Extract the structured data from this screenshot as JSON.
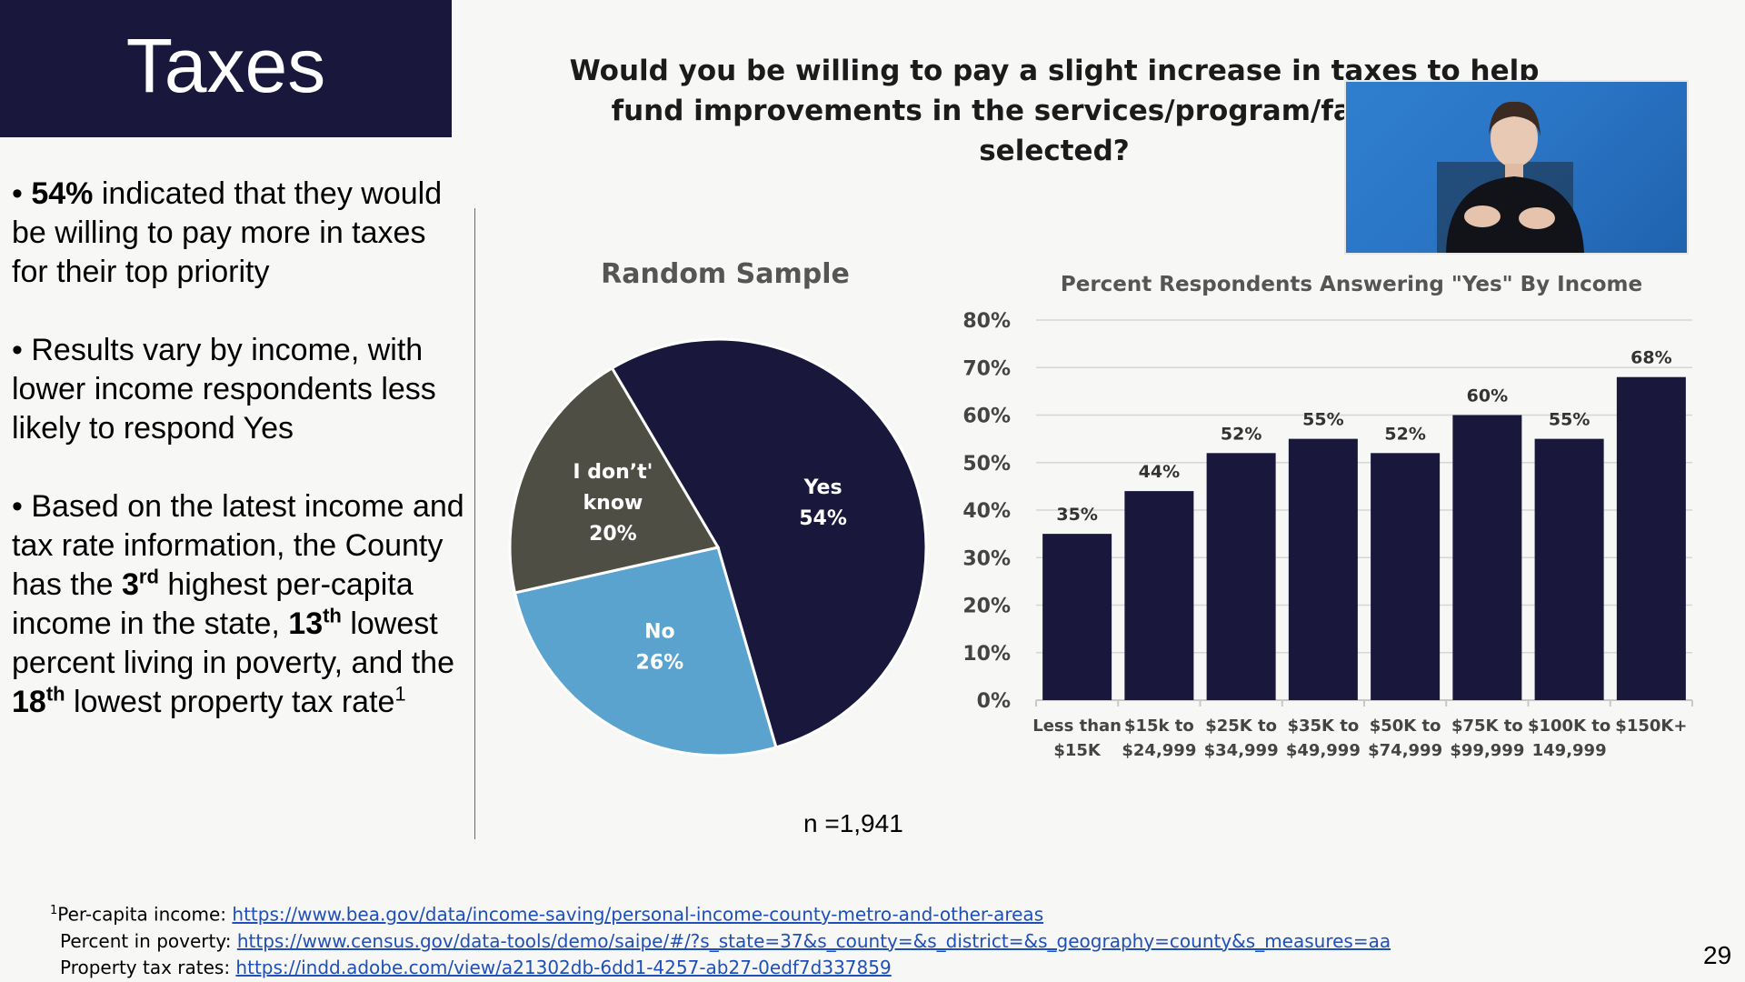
{
  "slide": {
    "title": "Taxes",
    "question": "Would you be willing to pay a slight increase in taxes to help fund improvements in the services/program/facility you selected?",
    "page_number": "29"
  },
  "bullets": {
    "b1_bold": "54%",
    "b1_text": " indicated that they would be willing to pay more in taxes for their top priority",
    "b2_text": "Results vary by income, with lower income respondents less likely to respond Yes",
    "b3_p1": "Based on the latest income and tax rate information, the County has the ",
    "b3_rank1": "3",
    "b3_rank1_sup": "rd",
    "b3_p2": " highest per-capita income in the state,  ",
    "b3_rank2": "13",
    "b3_rank2_sup": "th",
    "b3_p3": " lowest percent living in poverty, and the ",
    "b3_rank3": "18",
    "b3_rank3_sup": "th",
    "b3_p4": "  lowest property tax rate",
    "b3_footnote_mark": "1"
  },
  "sample_size": "n =1,941",
  "footnotes": {
    "mark": "1",
    "per_capita_label": "Per-capita income: ",
    "per_capita_url": "https://www.bea.gov/data/income-saving/personal-income-county-metro-and-other-areas",
    "poverty_label": "Percent in poverty: ",
    "poverty_url": "https://www.census.gov/data-tools/demo/saipe/#/?s_state=37&s_county=&s_district=&s_geography=county&s_measures=aa",
    "property_label": "Property tax rates: ",
    "property_url": "https://indd.adobe.com/view/a21302db-6dd1-4257-ab27-0edf7d337859"
  },
  "video_overlay": {
    "type": "sign-language-interpreter-feed"
  },
  "chart_data": [
    {
      "type": "pie",
      "title": "Random Sample",
      "slices": [
        {
          "label": "Yes",
          "percent_text": "54%",
          "value": 54,
          "color": "#19183c"
        },
        {
          "label": "No",
          "percent_text": "26%",
          "value": 26,
          "color": "#5ba3cf"
        },
        {
          "label": "I don’t' know",
          "label_lines": [
            "I don’t'",
            "know"
          ],
          "percent_text": "20%",
          "value": 20,
          "color": "#4f4e45"
        }
      ]
    },
    {
      "type": "bar",
      "title": "Percent Respondents Answering \"Yes\" By Income",
      "categories": [
        [
          "Less than",
          "$15K"
        ],
        [
          "$15k to",
          "$24,999"
        ],
        [
          "$25K to",
          "$34,999"
        ],
        [
          "$35K to",
          "$49,999"
        ],
        [
          "$50K to",
          "$74,999"
        ],
        [
          "$75K to",
          "$99,999"
        ],
        [
          "$100K to",
          "149,999"
        ],
        [
          "$150K+",
          ""
        ]
      ],
      "values": [
        35,
        44,
        52,
        55,
        52,
        60,
        55,
        68
      ],
      "value_labels": [
        "35%",
        "44%",
        "52%",
        "55%",
        "52%",
        "60%",
        "55%",
        "68%"
      ],
      "yticks": [
        "0%",
        "10%",
        "20%",
        "30%",
        "40%",
        "50%",
        "60%",
        "70%",
        "80%"
      ],
      "ylim": [
        0,
        80
      ],
      "grid": true,
      "bar_color": "#19183c"
    }
  ]
}
